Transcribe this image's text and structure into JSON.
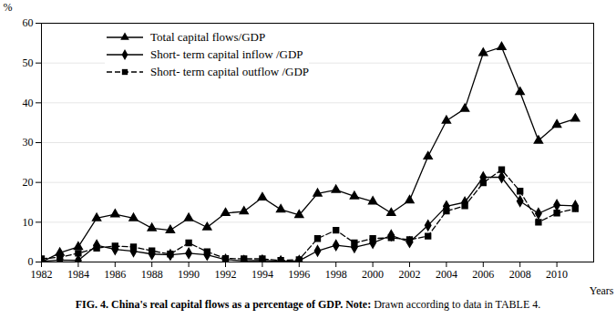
{
  "chart_data": {
    "type": "line",
    "caption": "FIG. 4. China's real capital flows as a percentage of GDP.",
    "note": "Note: Drawn according to data in TABLE 4.",
    "x_label": "Years",
    "y_label": "%",
    "x": [
      1982,
      1983,
      1984,
      1985,
      1986,
      1987,
      1988,
      1989,
      1990,
      1991,
      1992,
      1993,
      1994,
      1995,
      1996,
      1997,
      1998,
      1999,
      2000,
      2001,
      2002,
      2003,
      2004,
      2005,
      2006,
      2007,
      2008,
      2009,
      2010,
      2011
    ],
    "series": [
      {
        "name": "Total capital flows/GDP",
        "color": "#000000",
        "marker": "triangle",
        "line_style": "solid",
        "values": [
          0,
          2.3,
          3.8,
          11,
          12,
          11,
          8.5,
          8,
          11,
          8.7,
          12.3,
          12.7,
          16.2,
          13.2,
          11.8,
          17.2,
          18.1,
          16.5,
          15.2,
          12.3,
          15.5,
          26.5,
          35.5,
          38.5,
          52.5,
          54,
          42.7,
          30.5,
          34.5,
          36
        ]
      },
      {
        "name": "Short- term capital inflow /GDP",
        "color": "#000000",
        "marker": "diamond",
        "line_style": "solid",
        "values": [
          0.2,
          0.5,
          0.4,
          4.2,
          3.2,
          2.7,
          2,
          1.8,
          2.2,
          1.8,
          0.6,
          0.3,
          0.4,
          0.2,
          0.3,
          2.8,
          4.2,
          3.7,
          4.8,
          6.7,
          5,
          9.2,
          14,
          15,
          21.3,
          21.3,
          15.3,
          12.2,
          14.3,
          14.1
        ]
      },
      {
        "name": "Short- term capital outflow /GDP",
        "color": "#000000",
        "marker": "square",
        "line_style": "dashed",
        "values": [
          0.8,
          1.2,
          2.2,
          3.5,
          4,
          3.8,
          2.8,
          2,
          4.8,
          2.6,
          0.9,
          0.8,
          0.8,
          0.4,
          0.6,
          5.9,
          8,
          4.8,
          5.9,
          6.1,
          5.6,
          6.5,
          12.8,
          14.1,
          19.9,
          23.2,
          17.8,
          10,
          12.3,
          13.4
        ]
      }
    ],
    "xlim": [
      1982,
      2012
    ],
    "xticks": [
      1982,
      1984,
      1986,
      1988,
      1990,
      1992,
      1994,
      1996,
      1998,
      2000,
      2002,
      2004,
      2006,
      2008,
      2010
    ],
    "ylim": [
      0,
      60
    ],
    "yticks": [
      0,
      10,
      20,
      30,
      40,
      50,
      60
    ],
    "grid": true,
    "legend": "upper left"
  }
}
